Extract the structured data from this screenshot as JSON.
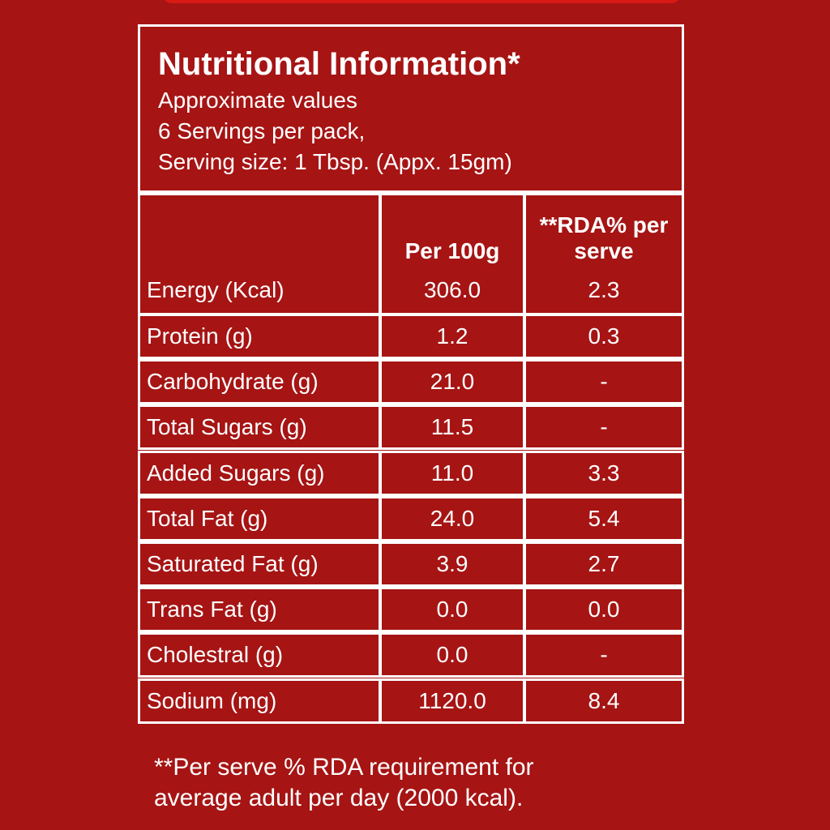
{
  "header": {
    "title": "Nutritional Information*",
    "lines": [
      "Approximate values",
      "6 Servings per pack,",
      "Serving size: 1 Tbsp. (Appx. 15gm)"
    ]
  },
  "table": {
    "columns": [
      "Per 100g",
      "**RDA% per serve"
    ],
    "rows": [
      [
        "Energy (Kcal)",
        "306.0",
        "2.3"
      ],
      [
        "Protein (g)",
        "1.2",
        "0.3"
      ],
      [
        "Carbohydrate (g)",
        "21.0",
        "-"
      ],
      [
        "Total Sugars (g)",
        "11.5",
        "-"
      ],
      [
        "Added Sugars (g)",
        "11.0",
        "3.3"
      ],
      [
        "Total Fat (g)",
        "24.0",
        "5.4"
      ],
      [
        "Saturated Fat (g)",
        "3.9",
        "2.7"
      ],
      [
        "Trans Fat (g)",
        "0.0",
        "0.0"
      ],
      [
        "Cholestral (g)",
        "0.0",
        "-"
      ],
      [
        "Sodium (mg)",
        "1120.0",
        "8.4"
      ]
    ]
  },
  "footnote": [
    "**Per serve % RDA requirement for",
    "average adult per day (2000 kcal)."
  ]
}
